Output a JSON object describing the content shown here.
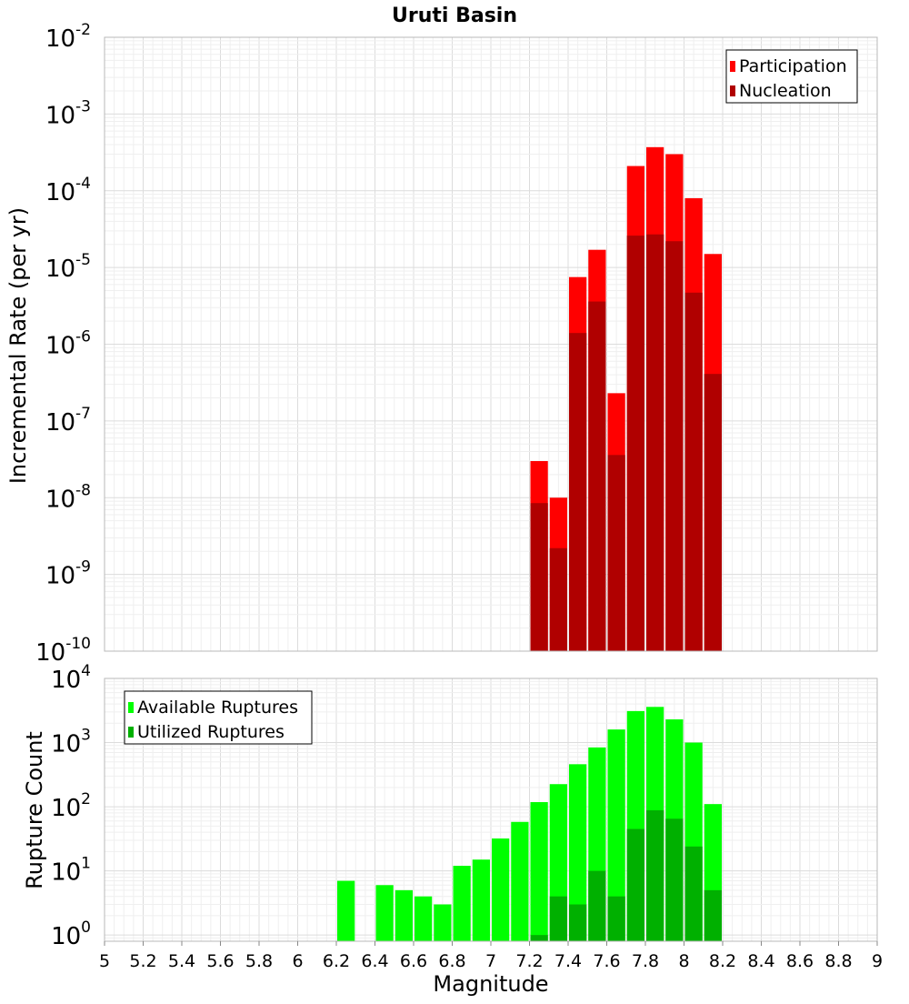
{
  "chart_data": [
    {
      "type": "bar",
      "title": "Uruti Basin",
      "xlabel": "",
      "ylabel": "Incremental Rate (per yr)",
      "xlim": [
        5,
        9
      ],
      "ylim": [
        1e-10,
        0.01
      ],
      "yscale": "log",
      "grid": true,
      "legend_position": "top-right",
      "bar_width": 0.1,
      "y_ticks": [
        {
          "base": "10",
          "exp": "-10"
        },
        {
          "base": "10",
          "exp": "-9"
        },
        {
          "base": "10",
          "exp": "-8"
        },
        {
          "base": "10",
          "exp": "-7"
        },
        {
          "base": "10",
          "exp": "-6"
        },
        {
          "base": "10",
          "exp": "-5"
        },
        {
          "base": "10",
          "exp": "-4"
        },
        {
          "base": "10",
          "exp": "-3"
        },
        {
          "base": "10",
          "exp": "-2"
        }
      ],
      "series": [
        {
          "name": "Participation",
          "color": "#ff0000",
          "x": [
            7.25,
            7.35,
            7.45,
            7.55,
            7.65,
            7.75,
            7.85,
            7.95,
            8.05,
            8.15
          ],
          "values": [
            3e-08,
            1e-08,
            7.5e-06,
            1.7e-05,
            2.3e-07,
            0.00021,
            0.00037,
            0.0003,
            8e-05,
            1.5e-05
          ]
        },
        {
          "name": "Nucleation",
          "color": "#b00000",
          "x": [
            7.25,
            7.35,
            7.45,
            7.55,
            7.65,
            7.75,
            7.85,
            7.95,
            8.05,
            8.15
          ],
          "values": [
            8.5e-09,
            2.2e-09,
            1.4e-06,
            3.6e-06,
            3.6e-08,
            2.6e-05,
            2.7e-05,
            2.2e-05,
            4.7e-06,
            4.1e-07
          ]
        }
      ]
    },
    {
      "type": "bar",
      "title": "",
      "xlabel": "Magnitude",
      "ylabel": "Rupture Count",
      "xlim": [
        5,
        9
      ],
      "ylim": [
        0.8,
        10000
      ],
      "yscale": "log",
      "grid": true,
      "legend_position": "top-left",
      "bar_width": 0.1,
      "x_ticks": [
        "5",
        "5.2",
        "5.4",
        "5.6",
        "5.8",
        "6",
        "6.2",
        "6.4",
        "6.6",
        "6.8",
        "7",
        "7.2",
        "7.4",
        "7.6",
        "7.8",
        "8",
        "8.2",
        "8.4",
        "8.6",
        "8.8",
        "9"
      ],
      "y_ticks": [
        {
          "base": "10",
          "exp": "0"
        },
        {
          "base": "10",
          "exp": "1"
        },
        {
          "base": "10",
          "exp": "2"
        },
        {
          "base": "10",
          "exp": "3"
        },
        {
          "base": "10",
          "exp": "4"
        }
      ],
      "series": [
        {
          "name": "Available Ruptures",
          "color": "#00ff00",
          "x": [
            6.25,
            6.45,
            6.55,
            6.65,
            6.75,
            6.85,
            6.95,
            7.05,
            7.15,
            7.25,
            7.35,
            7.45,
            7.55,
            7.65,
            7.75,
            7.85,
            7.95,
            8.05,
            8.15
          ],
          "values": [
            7,
            6,
            5,
            4,
            3,
            12,
            15,
            32,
            58,
            118,
            225,
            460,
            840,
            1600,
            3100,
            3600,
            2300,
            1000,
            110
          ]
        },
        {
          "name": "Utilized Ruptures",
          "color": "#00b000",
          "x": [
            7.25,
            7.35,
            7.45,
            7.55,
            7.65,
            7.75,
            7.85,
            7.95,
            8.05,
            8.15
          ],
          "values": [
            1,
            4,
            3,
            10,
            4,
            45,
            88,
            65,
            24,
            5
          ]
        }
      ]
    }
  ]
}
